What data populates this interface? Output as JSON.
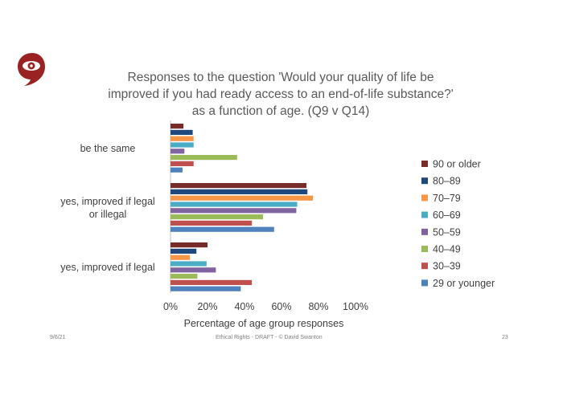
{
  "chart_data": {
    "type": "bar",
    "orientation": "horizontal",
    "title": [
      "Responses to the question 'Would your quality of life be",
      "improved if you had ready access to an end-of-life substance?'",
      "as a function of age. (Q9 v Q14)"
    ],
    "categories": [
      [
        "yes, improved if legal"
      ],
      [
        "yes, improved if legal",
        "or illegal"
      ],
      [
        "be the same"
      ]
    ],
    "xlabel": "Percentage of age group responses",
    "xlim": [
      0,
      100
    ],
    "xticks": [
      "0%",
      "20%",
      "40%",
      "60%",
      "80%",
      "100%"
    ],
    "legend_position": "right",
    "series": [
      {
        "name": "29 or younger",
        "color": "#4f81bd",
        "values": [
          38,
          56,
          6.5
        ]
      },
      {
        "name": "30–39",
        "color": "#c0504d",
        "values": [
          44,
          44,
          12.5
        ]
      },
      {
        "name": "40–49",
        "color": "#9bbb59",
        "values": [
          14.5,
          50,
          36
        ]
      },
      {
        "name": "50–59",
        "color": "#8064a2",
        "values": [
          24.5,
          68,
          7.5
        ]
      },
      {
        "name": "60–69",
        "color": "#4bacc6",
        "values": [
          19.5,
          68.5,
          12.5
        ]
      },
      {
        "name": "70–79",
        "color": "#f79646",
        "values": [
          10.5,
          77,
          12.5
        ]
      },
      {
        "name": "80–89",
        "color": "#1f497d",
        "values": [
          14,
          74,
          12
        ]
      },
      {
        "name": "90 or older",
        "color": "#772c2a",
        "values": [
          20,
          73.5,
          7
        ]
      }
    ]
  },
  "footer": {
    "date": "9/6/21",
    "center": "Ethical Rights  -  DRAFT  -  © David Swanton",
    "page": "23"
  },
  "brand_color": "#9b2222"
}
